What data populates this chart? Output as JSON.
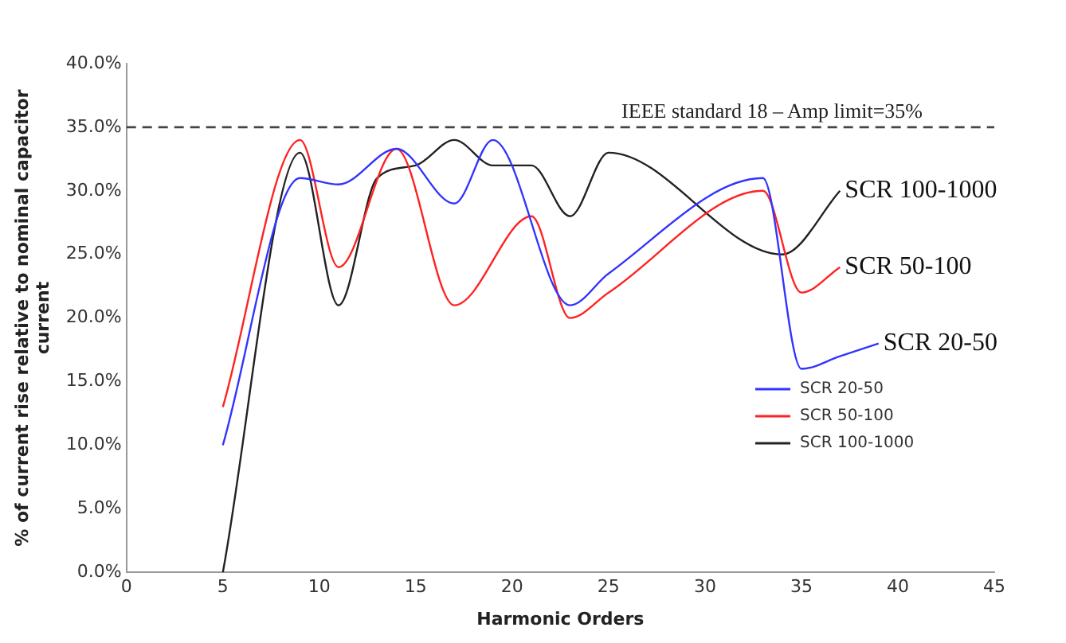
{
  "chart_data": {
    "type": "line",
    "xlabel": "Harmonic Orders",
    "ylabel": "% of current rise relative to nominal capacitor current",
    "xlim": [
      0,
      45
    ],
    "xticks": [
      0,
      5,
      10,
      15,
      20,
      25,
      30,
      35,
      40,
      45
    ],
    "ylim": [
      0,
      40
    ],
    "yticks": [
      {
        "value": 0,
        "label": "0.0%"
      },
      {
        "value": 5,
        "label": "5.0%"
      },
      {
        "value": 10,
        "label": "10.0%"
      },
      {
        "value": 15,
        "label": "15.0%"
      },
      {
        "value": 20,
        "label": "20.0%"
      },
      {
        "value": 25,
        "label": "25.0%"
      },
      {
        "value": 30,
        "label": "30.0%"
      },
      {
        "value": 35,
        "label": "35.0%"
      },
      {
        "value": 40,
        "label": "40.0%"
      }
    ],
    "grid": false,
    "legend": "right",
    "marker": "none",
    "line_style": "solid",
    "series": [
      {
        "name": "SCR 20-50",
        "color": "#3333ff",
        "x": [
          5,
          9,
          11,
          14,
          17,
          19,
          23,
          25,
          33,
          35,
          37,
          39
        ],
        "values": [
          10,
          31,
          30.5,
          33.3,
          29,
          34,
          21,
          23.5,
          31,
          16,
          17,
          18
        ]
      },
      {
        "name": "SCR 50-100",
        "color": "#ff2222",
        "x": [
          5,
          9,
          11,
          14,
          17,
          21,
          23,
          25,
          33,
          35,
          37
        ],
        "values": [
          13,
          34,
          24,
          33.3,
          21,
          28,
          20,
          22,
          30,
          22,
          24
        ]
      },
      {
        "name": "SCR 100-1000",
        "color": "#222222",
        "x": [
          5,
          9,
          11,
          13,
          15,
          17,
          19,
          21,
          23,
          25,
          34,
          37
        ],
        "values": [
          0,
          33,
          21,
          31,
          32,
          34,
          32,
          32,
          28,
          33,
          25,
          30
        ]
      }
    ],
    "ref_lines": [
      {
        "axis": "y",
        "value": 35,
        "label": "IEEE standard 18 – Amp limit=35%",
        "color": "#444444",
        "line_style": "dashed"
      }
    ],
    "annotations": [
      "SCR 20-50",
      "SCR 50-100",
      "SCR 100-1000"
    ]
  }
}
